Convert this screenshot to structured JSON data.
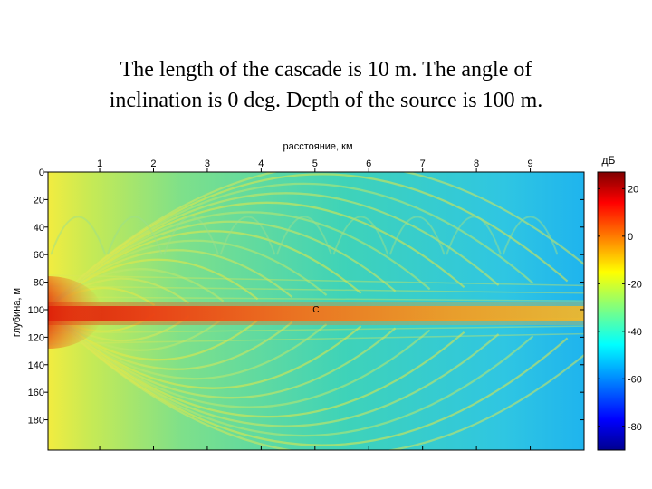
{
  "slide": {
    "title_line1": "The length of the cascade is 10 m. The angle of",
    "title_line2": "inclination is 0 deg. Depth of the source is 100 m."
  },
  "chart_data": {
    "type": "heatmap",
    "title": "",
    "xlabel": "расстояние, км",
    "ylabel": "глубина, м",
    "x_ticks": [
      "1",
      "2",
      "3",
      "4",
      "5",
      "6",
      "7",
      "8",
      "9"
    ],
    "y_ticks": [
      "0",
      "20",
      "40",
      "60",
      "80",
      "100",
      "120",
      "140",
      "160",
      "180"
    ],
    "x_axis_position": "top",
    "xlim": [
      0.04,
      10
    ],
    "ylim": [
      0,
      202
    ],
    "colorbar": {
      "label": "дБ",
      "ticks": [
        "20",
        "0",
        "-20",
        "-40",
        "-60",
        "-80"
      ],
      "range": [
        -90,
        27
      ],
      "colormap": "jet"
    },
    "source": {
      "x_km": 0,
      "depth_m": 100
    },
    "marker": {
      "label": "C",
      "x_km": 5,
      "depth_m": 100
    },
    "beam": {
      "depth_m": 100,
      "description": "intense waveguide channel at 100 m depth decaying with distance"
    },
    "background_level_db": -40
  }
}
